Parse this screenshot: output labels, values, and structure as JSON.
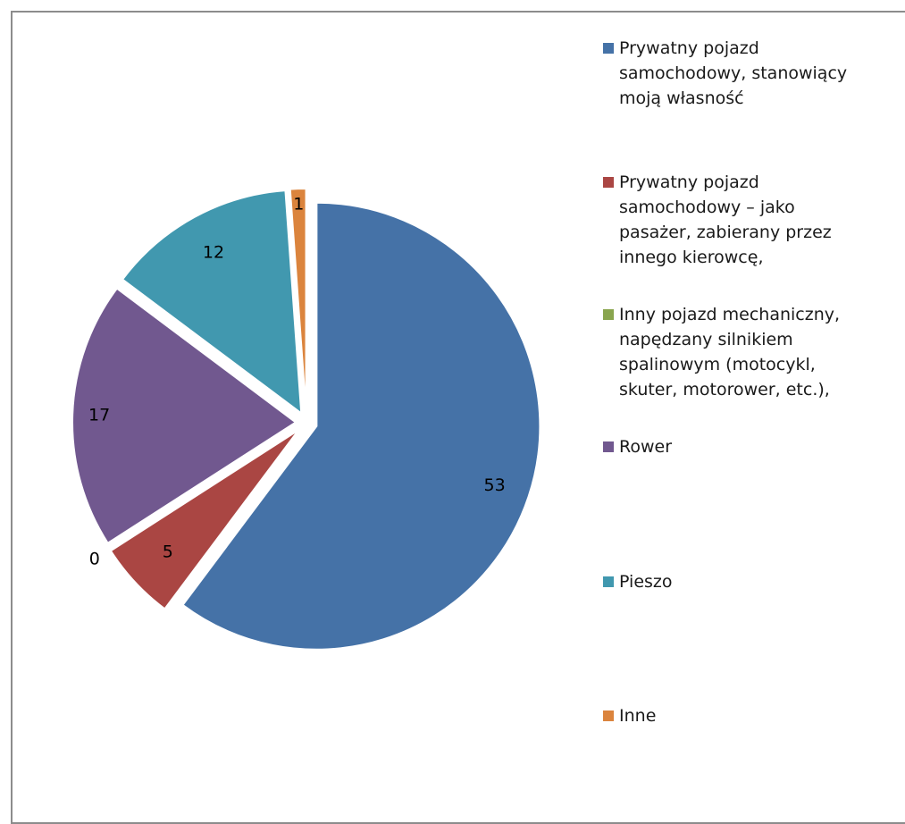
{
  "chart_data": {
    "type": "pie",
    "title": "",
    "categories": [
      "Prywatny pojazd\nsamochodowy, stanowiący\nmoją własność",
      "Prywatny pojazd\nsamochodowy – jako\npasażer, zabierany przez\ninnego kierowcę,",
      "Inny pojazd mechaniczny,\nnapędzany silnikiem\nspalinowym (motocykl,\nskuter, motorower, etc.),",
      "Rower",
      "Pieszo",
      "Inne"
    ],
    "values": [
      53,
      5,
      0,
      17,
      12,
      1
    ],
    "data_labels": [
      "53",
      "5",
      "0",
      "17",
      "12",
      "1"
    ],
    "colors": [
      "#4572A7",
      "#AA4643",
      "#89A54E",
      "#71588F",
      "#4198AF",
      "#DB843D"
    ],
    "exploded": true,
    "legend_position": "right"
  }
}
